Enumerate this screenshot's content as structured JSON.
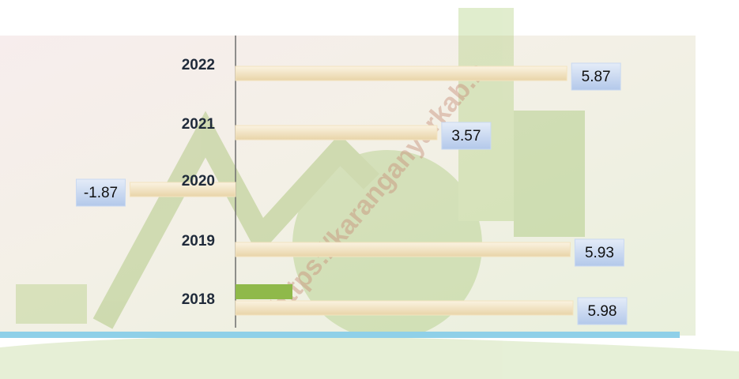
{
  "chart_data": {
    "type": "bar",
    "orientation": "horizontal",
    "categories": [
      "2022",
      "2021",
      "2020",
      "2019",
      "2018"
    ],
    "values": [
      5.87,
      3.57,
      -1.87,
      5.93,
      5.98
    ],
    "color": "#f3e3bf",
    "label_color": "#c9d9f1",
    "watermark": "https://karanganyarkab.b"
  }
}
